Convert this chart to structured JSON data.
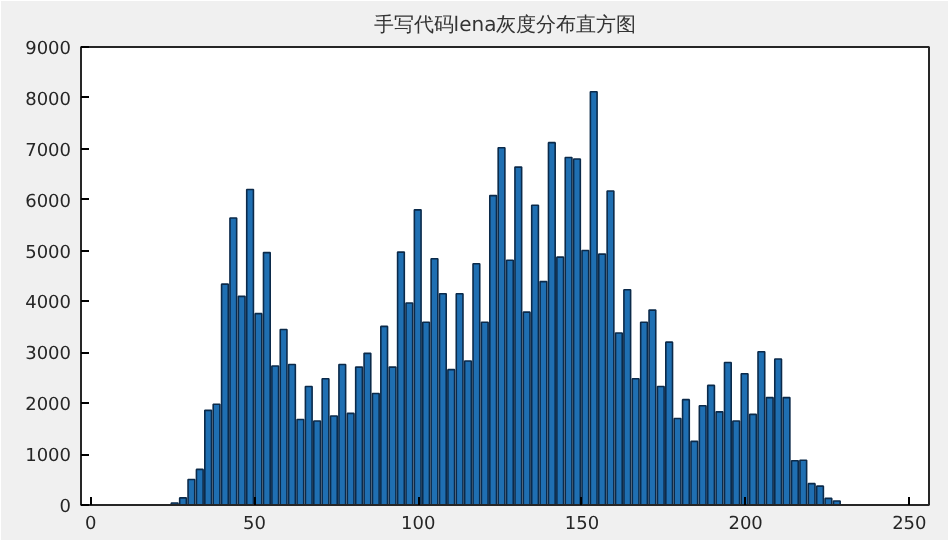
{
  "chart_data": {
    "type": "bar",
    "title": "手写代码lena灰度分布直方图",
    "x": [
      25.6,
      28.16,
      30.72,
      33.28,
      35.84,
      38.4,
      40.96,
      43.52,
      46.08,
      48.64,
      51.2,
      53.76,
      56.32,
      58.88,
      61.44,
      64,
      66.56,
      69.12,
      71.68,
      74.24,
      76.8,
      79.36,
      81.92,
      84.48,
      87.04,
      89.6,
      92.16,
      94.72,
      97.28,
      99.84,
      102.4,
      104.96,
      107.52,
      110.08,
      112.64,
      115.2,
      117.76,
      120.32,
      122.88,
      125.44,
      128,
      130.56,
      133.12,
      135.68,
      138.24,
      140.8,
      143.36,
      145.92,
      148.48,
      151.04,
      153.6,
      156.16,
      158.72,
      161.28,
      163.84,
      166.4,
      168.96,
      171.52,
      174.08,
      176.64,
      179.2,
      181.76,
      184.32,
      186.88,
      189.44,
      192,
      194.56,
      197.12,
      199.68,
      202.24,
      204.8,
      207.36,
      209.92,
      212.48,
      215.04,
      217.6,
      220.16,
      222.72,
      225.28,
      227.84
    ],
    "values": [
      40,
      140,
      500,
      700,
      1860,
      1980,
      4340,
      5640,
      4100,
      6200,
      3760,
      4960,
      2730,
      3450,
      2760,
      1680,
      2330,
      1650,
      2480,
      1750,
      2760,
      1800,
      2710,
      2980,
      2190,
      3510,
      2710,
      4970,
      3970,
      5800,
      3590,
      4840,
      4150,
      2660,
      4150,
      2830,
      4740,
      3590,
      6080,
      7020,
      4810,
      6640,
      3790,
      5890,
      4390,
      7120,
      4870,
      6830,
      6800,
      5000,
      8120,
      4930,
      6170,
      3380,
      4230,
      2480,
      3590,
      3830,
      2330,
      3200,
      1700,
      2070,
      1250,
      1950,
      2350,
      1830,
      2800,
      1650,
      2580,
      1780,
      3010,
      2110,
      2870,
      2110,
      870,
      880,
      420,
      370,
      130,
      80
    ],
    "color": "#1f6fb2",
    "xlim": [
      -3,
      256
    ],
    "ylim": [
      0,
      9000
    ],
    "xticks": [
      0,
      50,
      100,
      150,
      200,
      250
    ],
    "yticks": [
      0,
      1000,
      2000,
      3000,
      4000,
      5000,
      6000,
      7000,
      8000,
      9000
    ],
    "grid": false
  }
}
